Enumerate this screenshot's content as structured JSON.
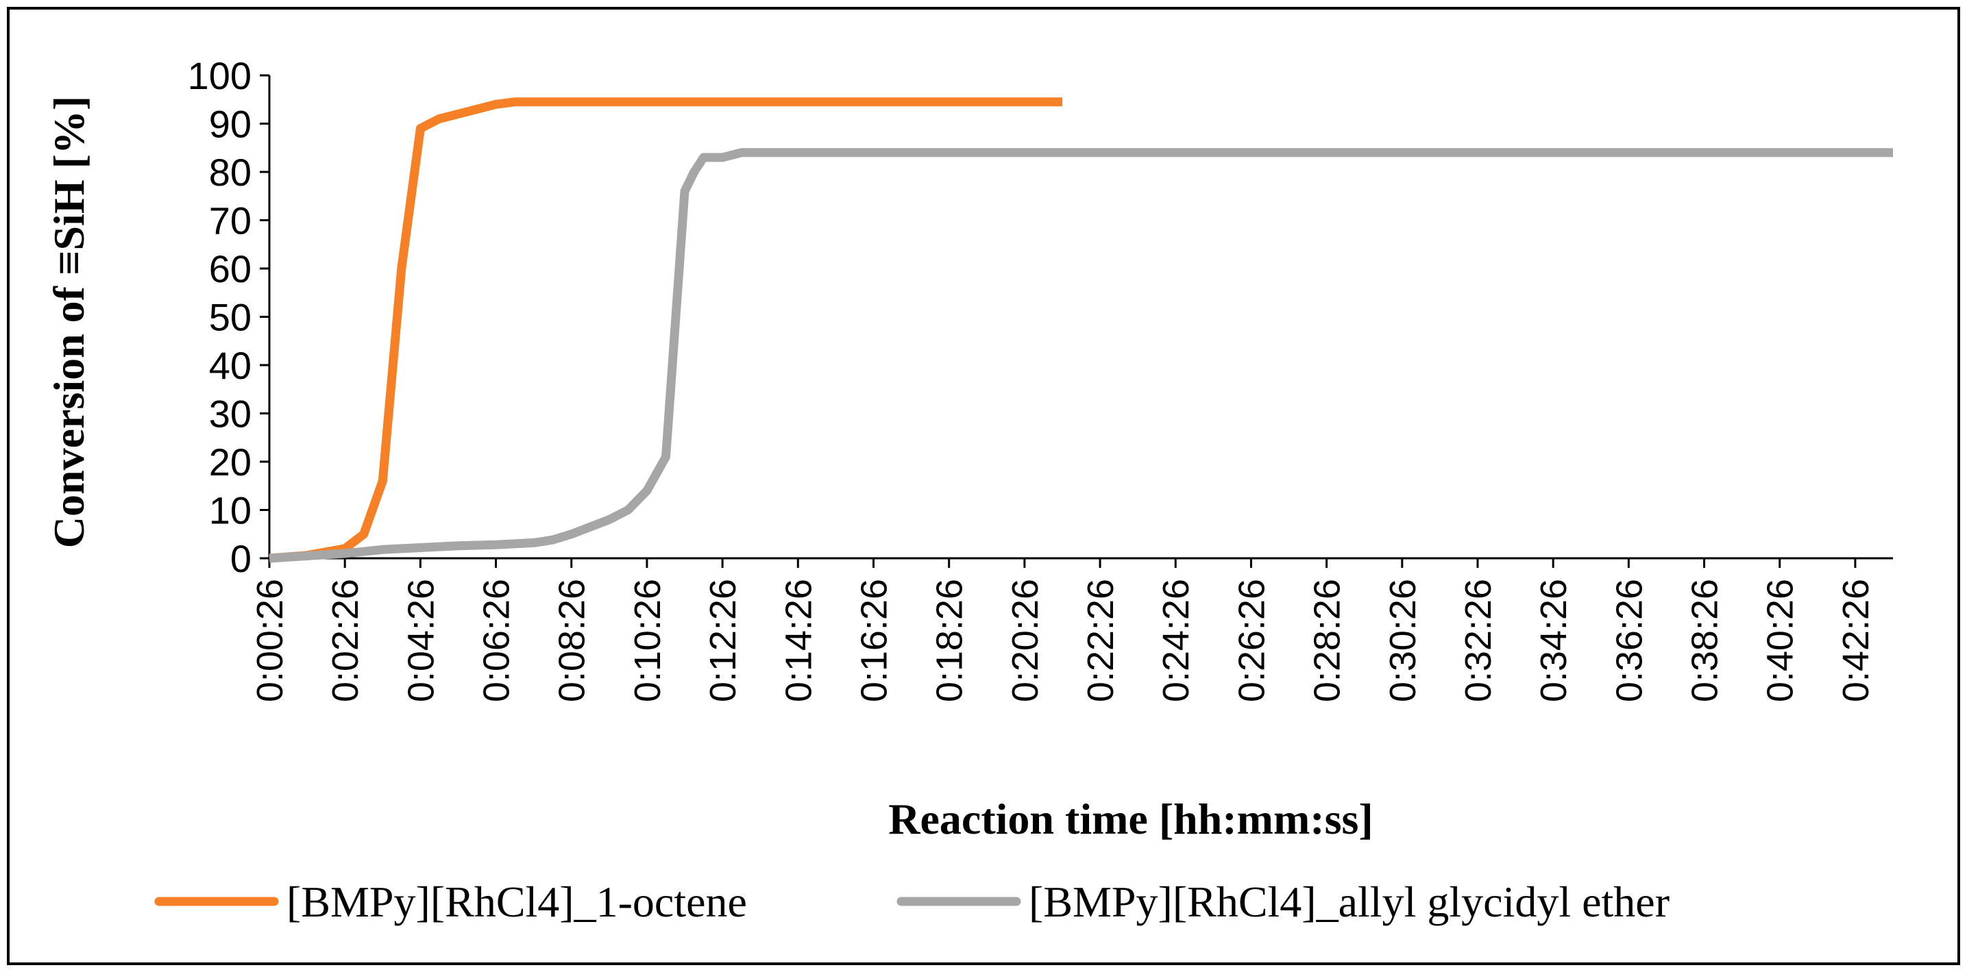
{
  "chart_data": {
    "type": "line",
    "title": "",
    "xlabel": "Reaction time [hh:mm:ss]",
    "ylabel": "Conversion of ≡SiH [%]",
    "ylim": [
      0,
      100
    ],
    "yticks": [
      0,
      10,
      20,
      30,
      40,
      50,
      60,
      70,
      80,
      90,
      100
    ],
    "xlim_minutes": [
      0.433,
      43.433
    ],
    "xticks": [
      "0:00:26",
      "0:02:26",
      "0:04:26",
      "0:06:26",
      "0:08:26",
      "0:10:26",
      "0:12:26",
      "0:14:26",
      "0:16:26",
      "0:18:26",
      "0:20:26",
      "0:22:26",
      "0:24:26",
      "0:26:26",
      "0:28:26",
      "0:30:26",
      "0:32:26",
      "0:34:26",
      "0:36:26",
      "0:38:26",
      "0:40:26",
      "0:42:26"
    ],
    "grid": false,
    "legend_position": "bottom",
    "series": [
      {
        "name": "[BMPy][RhCl4]_1-octene",
        "color": "#F58025",
        "x_minutes": [
          0.433,
          1.433,
          2.433,
          2.933,
          3.433,
          3.933,
          4.433,
          4.933,
          5.433,
          6.433,
          6.933,
          7.433,
          8.433,
          10.433,
          12.433,
          14.433,
          16.433,
          18.433,
          20.433,
          21.433
        ],
        "values": [
          0,
          0.6,
          2,
          5,
          16,
          60,
          89,
          91,
          92,
          94,
          94.5,
          94.5,
          94.5,
          94.5,
          94.5,
          94.5,
          94.5,
          94.5,
          94.5,
          94.5
        ]
      },
      {
        "name": "[BMPy][RhCl4]_allyl glycidyl ether",
        "color": "#A6A6A6",
        "x_minutes": [
          0.433,
          1.433,
          2.433,
          3.433,
          4.433,
          5.433,
          6.433,
          7.433,
          7.933,
          8.433,
          8.933,
          9.433,
          9.933,
          10.433,
          10.933,
          11.433,
          11.683,
          11.933,
          12.433,
          12.933,
          13.433,
          14.433,
          16.433,
          20.433,
          24.433,
          28.433,
          32.433,
          36.433,
          40.433,
          43.433
        ],
        "values": [
          0,
          0.5,
          1,
          1.8,
          2.2,
          2.6,
          2.8,
          3.2,
          3.8,
          5,
          6.5,
          8,
          10,
          14,
          21,
          76,
          80,
          83,
          83,
          84,
          84,
          84,
          84,
          84,
          84,
          84,
          84,
          84,
          84,
          84
        ]
      }
    ]
  }
}
